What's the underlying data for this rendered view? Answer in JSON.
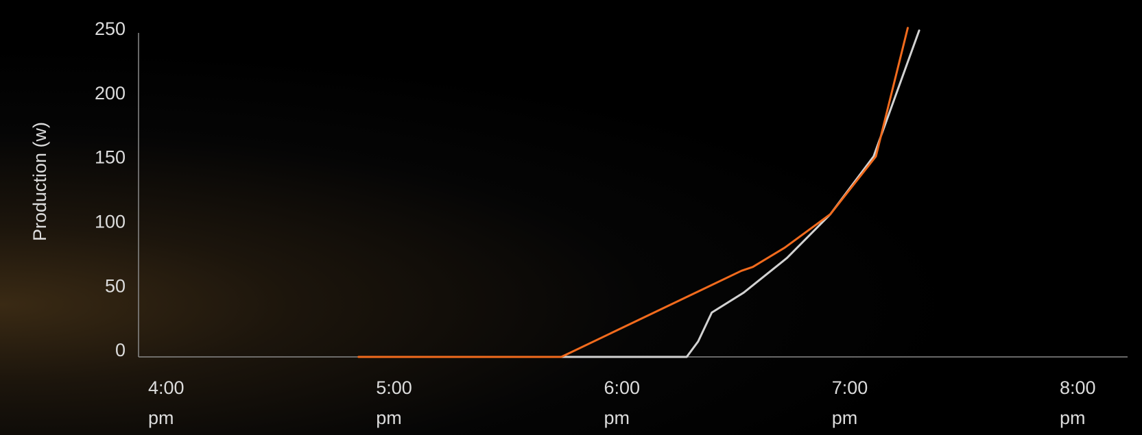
{
  "chart_data": {
    "type": "line",
    "y_label": "Production (w)",
    "xlim": [
      16,
      20
    ],
    "ylim": [
      0,
      250
    ],
    "xticks": [
      {
        "value": 16,
        "label": "4:00 pm"
      },
      {
        "value": 17,
        "label": "5:00 pm"
      },
      {
        "value": 18,
        "label": "6:00 pm"
      },
      {
        "value": 19,
        "label": "7:00 pm"
      },
      {
        "value": 20,
        "label": "8:00 pm"
      }
    ],
    "yticks": [
      0,
      50,
      100,
      150,
      200,
      250
    ],
    "grid": false,
    "series": [
      {
        "color": "#f26b1d",
        "x": [
          16.83,
          17.72,
          18.51,
          18.56,
          18.7,
          18.9,
          19.1,
          19.24
        ],
        "values": [
          0,
          0,
          67,
          70,
          85,
          111,
          156,
          256
        ]
      },
      {
        "color": "#d2d2d2",
        "x": [
          17.72,
          18.27,
          18.32,
          18.38,
          18.52,
          18.71,
          18.9,
          19.09,
          19.29
        ],
        "values": [
          0,
          0,
          12,
          34.5,
          50,
          77,
          111,
          156,
          254
        ]
      }
    ]
  }
}
